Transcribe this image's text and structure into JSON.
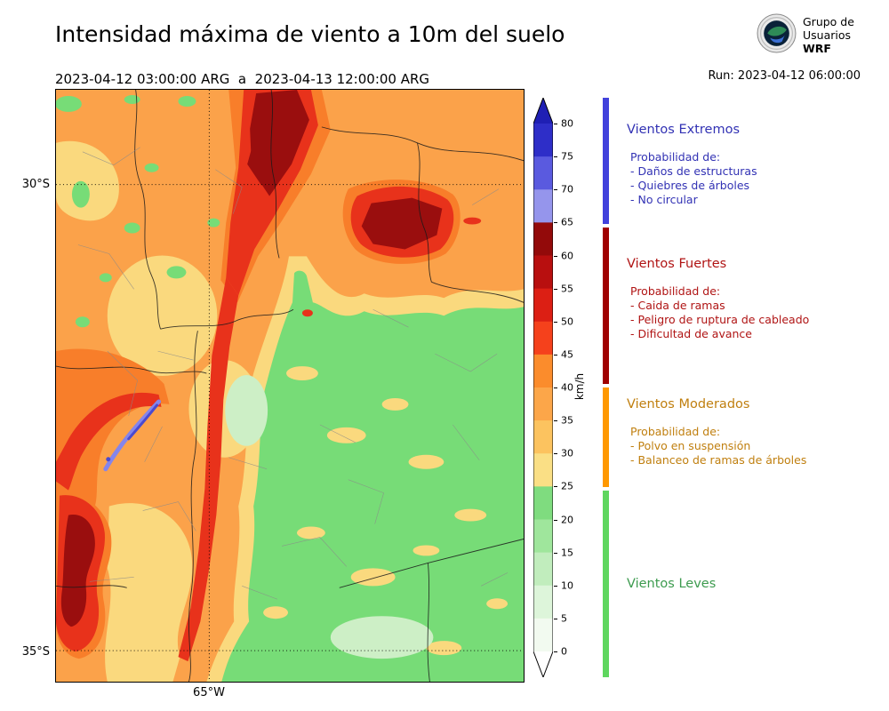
{
  "header": {
    "title": "Intensidad máxima de viento a 10m del suelo",
    "period": "2023-04-12 03:00:00 ARG  a  2023-04-13 12:00:00 ARG",
    "run": "Run: 2023-04-12 06:00:00"
  },
  "logo": {
    "line1": "Grupo de",
    "line2": "Usuarios",
    "line3": "WRF"
  },
  "map": {
    "lat_ticks": [
      "30°S",
      "35°S"
    ],
    "lon_ticks": [
      "65°W"
    ]
  },
  "colorbar": {
    "unit": "km/h",
    "ticks_top_to_bottom": [
      80,
      75,
      70,
      65,
      60,
      55,
      50,
      45,
      40,
      35,
      30,
      25,
      20,
      15,
      10,
      5,
      0
    ],
    "segment_colors_top_to_bottom": [
      "#2E2EC8",
      "#5A5ADF",
      "#9595EC",
      "#930A0A",
      "#B80F0F",
      "#DC1F14",
      "#F5411C",
      "#FB8C2C",
      "#FCA649",
      "#FCC35F",
      "#FADF85",
      "#7FDC7F",
      "#9FE69C",
      "#C1EDBD",
      "#DDF5DA",
      "#F2FAF0"
    ],
    "over_color": "#1F1FB4",
    "under_color": "#FFFFFF"
  },
  "palette": {
    "orange": "#FBA24A",
    "deeporange": "#F87E2A",
    "yellow": "#FAD97E",
    "green": "#77DC77",
    "palegreen": "#CDEFC6",
    "red": "#E8321B",
    "darkred": "#9A0E0E",
    "blue": "#8585EA",
    "deepblue": "#4A4AD0"
  },
  "legend": {
    "sections": [
      {
        "title": "Vientos Extremos",
        "color": "#3232B4",
        "bar_color": "#4242DC",
        "prob_header": "Probabilidad de:",
        "items": [
          "- Daños de estructuras",
          "- Quiebres de árboles",
          "- No circular"
        ]
      },
      {
        "title": "Vientos Fuertes",
        "color": "#B01414",
        "bar_color": "#A00000",
        "prob_header": "Probabilidad de:",
        "items": [
          "- Caida de ramas",
          "- Peligro de ruptura de cableado",
          "- Dificultad de avance"
        ]
      },
      {
        "title": "Vientos Moderados",
        "color": "#C07F0F",
        "bar_color": "#FF9800",
        "prob_header": "Probabilidad de:",
        "items": [
          "- Polvo en suspensión",
          "- Balanceo de ramas de árboles"
        ]
      },
      {
        "title": "Vientos Leves",
        "color": "#3D9B4F",
        "bar_color": "#5FD65F",
        "prob_header": "",
        "items": []
      }
    ]
  }
}
